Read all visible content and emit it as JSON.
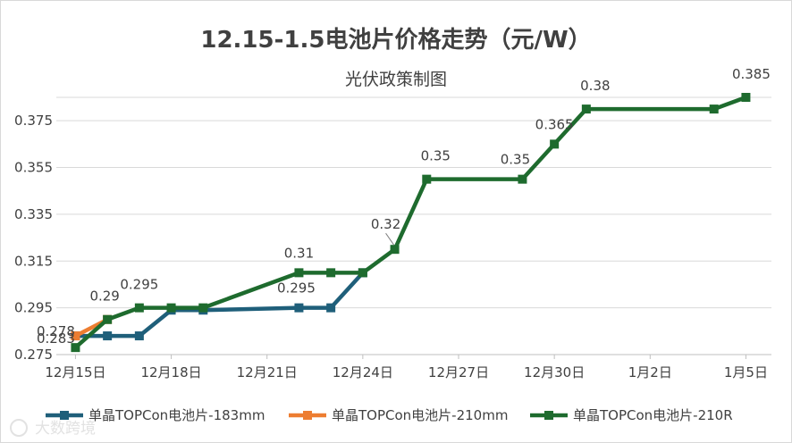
{
  "chart_data": {
    "type": "line",
    "title": "12.15-1.5电池片价格走势（元/W）",
    "subtitle": "光伏政策制图",
    "xlabel": "",
    "ylabel": "",
    "x_ticks": [
      "12月15日",
      "12月18日",
      "12月21日",
      "12月24日",
      "12月27日",
      "12月30日",
      "1月2日",
      "1月5日"
    ],
    "y_ticks": [
      "0.275",
      "0.295",
      "0.315",
      "0.335",
      "0.355",
      "0.375"
    ],
    "ylim": [
      0.275,
      0.385
    ],
    "xlim_days": [
      -0.6,
      21.8
    ],
    "grid": true,
    "legend": "bottom",
    "series": [
      {
        "name": "单晶TOPCon电池片-183mm",
        "color": "#1f5f7a",
        "points": [
          {
            "x": 0,
            "y": 0.283
          },
          {
            "x": 1,
            "y": 0.283
          },
          {
            "x": 2,
            "y": 0.283
          },
          {
            "x": 3,
            "y": 0.294
          },
          {
            "x": 4,
            "y": 0.294
          },
          {
            "x": 7,
            "y": 0.295
          },
          {
            "x": 8,
            "y": 0.295
          },
          {
            "x": 9,
            "y": 0.31
          }
        ]
      },
      {
        "name": "单晶TOPCon电池片-210mm",
        "color": "#ed7d31",
        "points": [
          {
            "x": 0,
            "y": 0.283
          },
          {
            "x": 1,
            "y": 0.29
          }
        ]
      },
      {
        "name": "单晶TOPCon电池片-210R",
        "color": "#1e6b2e",
        "points": [
          {
            "x": 0,
            "y": 0.278
          },
          {
            "x": 1,
            "y": 0.29
          },
          {
            "x": 2,
            "y": 0.295
          },
          {
            "x": 3,
            "y": 0.295
          },
          {
            "x": 4,
            "y": 0.295
          },
          {
            "x": 7,
            "y": 0.31
          },
          {
            "x": 8,
            "y": 0.31
          },
          {
            "x": 9,
            "y": 0.31
          },
          {
            "x": 10,
            "y": 0.32
          },
          {
            "x": 11,
            "y": 0.35
          },
          {
            "x": 14,
            "y": 0.35
          },
          {
            "x": 15,
            "y": 0.365
          },
          {
            "x": 16,
            "y": 0.38
          },
          {
            "x": 20,
            "y": 0.38
          },
          {
            "x": 21,
            "y": 0.385
          }
        ]
      }
    ],
    "data_labels": [
      {
        "text": "0.283",
        "x": 0,
        "y": 0.283
      },
      {
        "text": "0.278",
        "x": 0,
        "y": 0.278
      },
      {
        "text": "0.29",
        "x": 1,
        "y": 0.29
      },
      {
        "text": "0.295",
        "x": 2,
        "y": 0.295
      },
      {
        "text": "0.295",
        "x": 7,
        "y": 0.295
      },
      {
        "text": "0.31",
        "x": 7,
        "y": 0.31
      },
      {
        "text": "0.32",
        "x": 10,
        "y": 0.32
      },
      {
        "text": "0.35",
        "x": 11,
        "y": 0.35
      },
      {
        "text": "0.35",
        "x": 14,
        "y": 0.35
      },
      {
        "text": "0.365",
        "x": 15,
        "y": 0.365
      },
      {
        "text": "0.38",
        "x": 16,
        "y": 0.38
      },
      {
        "text": "0.385",
        "x": 21,
        "y": 0.385
      }
    ]
  },
  "watermark": "大数跨境"
}
